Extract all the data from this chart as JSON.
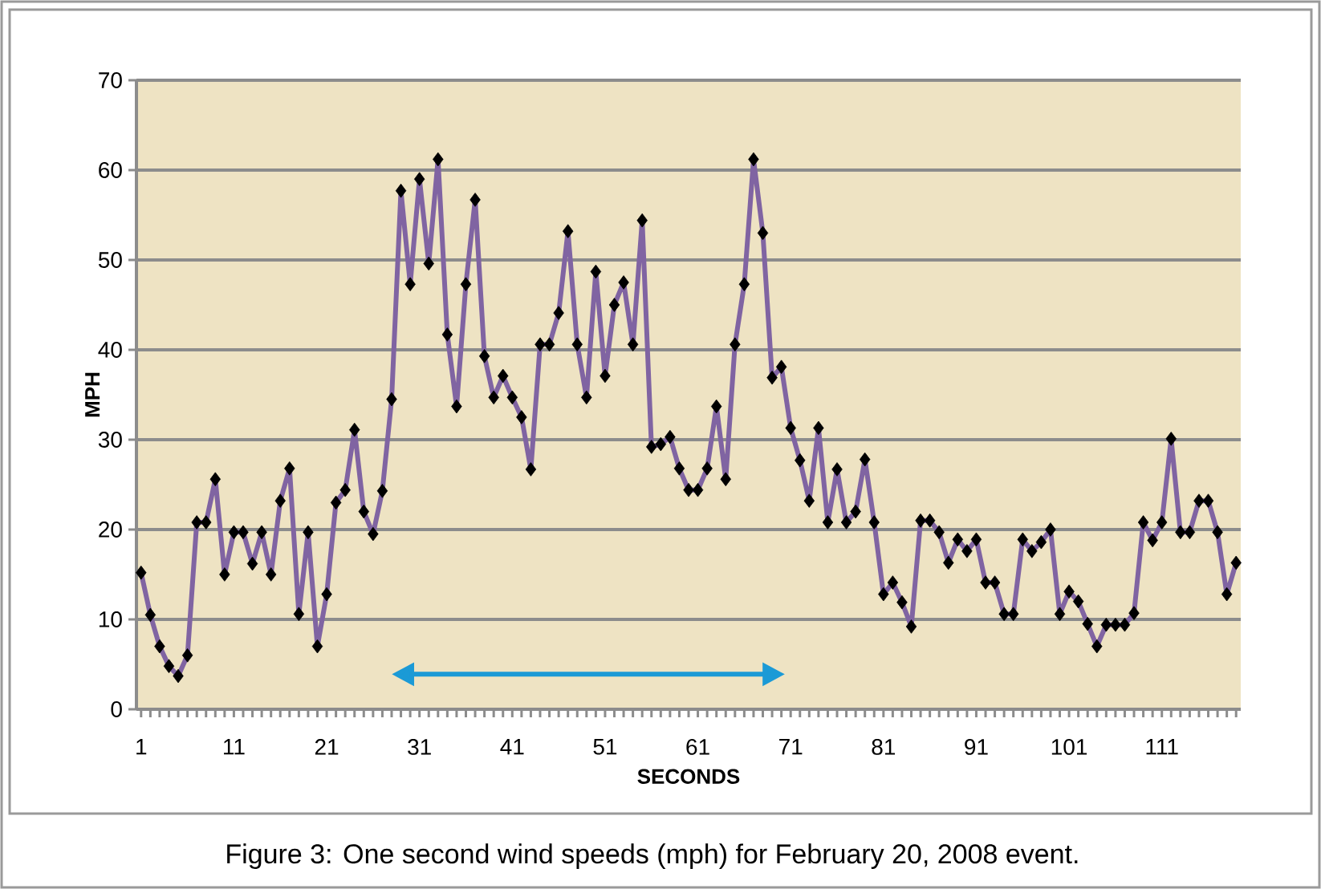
{
  "chart_data": {
    "type": "line",
    "categories": [
      "1",
      null,
      null,
      null,
      null,
      null,
      null,
      null,
      null,
      null,
      "11",
      null,
      null,
      null,
      null,
      null,
      null,
      null,
      null,
      null,
      "21",
      null,
      null,
      null,
      null,
      null,
      null,
      null,
      null,
      null,
      "31",
      null,
      null,
      null,
      null,
      null,
      null,
      null,
      null,
      null,
      "41",
      null,
      null,
      null,
      null,
      null,
      null,
      null,
      null,
      null,
      "51",
      null,
      null,
      null,
      null,
      null,
      null,
      null,
      null,
      null,
      "61",
      null,
      null,
      null,
      null,
      null,
      null,
      null,
      null,
      null,
      "71",
      null,
      null,
      null,
      null,
      null,
      null,
      null,
      null,
      null,
      "81",
      null,
      null,
      null,
      null,
      null,
      null,
      null,
      null,
      null,
      "91",
      null,
      null,
      null,
      null,
      null,
      null,
      null,
      null,
      null,
      "101",
      null,
      null,
      null,
      null,
      null,
      null,
      null,
      null,
      null,
      "111",
      null,
      null,
      null,
      null,
      null,
      null,
      null,
      null
    ],
    "series": [
      {
        "color": "#8064a2",
        "values": [
          15.2,
          10.5,
          7.0,
          4.8,
          3.7,
          6.0,
          20.8,
          20.8,
          25.6,
          15.0,
          19.7,
          19.7,
          16.2,
          19.7,
          15.0,
          23.2,
          26.8,
          10.6,
          19.7,
          7.0,
          12.8,
          23.0,
          24.4,
          31.1,
          22.0,
          19.5,
          24.3,
          34.5,
          57.7,
          47.3,
          59.0,
          49.6,
          61.2,
          41.7,
          33.7,
          47.3,
          56.7,
          39.3,
          34.7,
          37.1,
          34.7,
          32.5,
          26.7,
          40.6,
          40.6,
          44.1,
          53.2,
          40.6,
          34.7,
          48.7,
          37.1,
          45.0,
          47.5,
          40.6,
          54.4,
          29.2,
          29.5,
          30.3,
          26.8,
          24.4,
          24.4,
          26.8,
          33.7,
          25.6,
          40.6,
          47.3,
          61.2,
          53.0,
          36.9,
          38.1,
          31.3,
          27.7,
          23.2,
          31.3,
          20.8,
          26.7,
          20.8,
          22.0,
          27.8,
          20.8,
          12.8,
          14.1,
          11.9,
          9.2,
          21.0,
          21.0,
          19.7,
          16.3,
          18.9,
          17.6,
          18.9,
          14.1,
          14.1,
          10.6,
          10.6,
          18.9,
          17.6,
          18.6,
          20.0,
          10.6,
          13.1,
          12.0,
          9.5,
          7.0,
          9.4,
          9.4,
          9.4,
          10.7,
          20.8,
          18.8,
          20.8,
          30.1,
          19.7,
          19.7,
          23.2,
          23.2,
          19.7,
          12.8,
          16.3
        ]
      }
    ],
    "xlabel": "SECONDS",
    "ylabel": "MPH",
    "ylim": [
      0,
      70
    ],
    "yticks": [
      0,
      10,
      20,
      30,
      40,
      50,
      60,
      70
    ],
    "grid": "y",
    "marker": "diamond",
    "line_style": "solid",
    "annotations": [
      "Figure 3:  One second wind speeds (mph) for February 20, 2008 event."
    ]
  }
}
